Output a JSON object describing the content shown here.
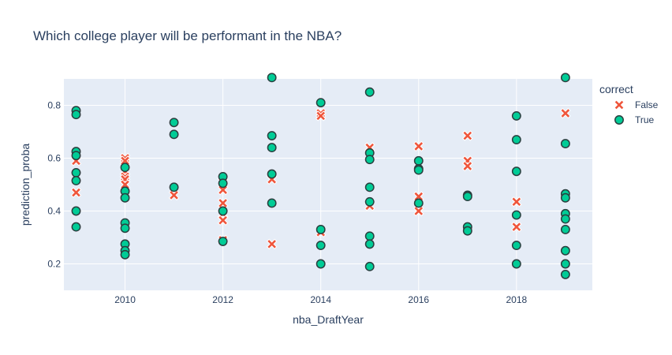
{
  "chart_data": {
    "type": "scatter",
    "title": "Which college player will be performant in the NBA?",
    "xlabel": "nba_DraftYear",
    "ylabel": "prediction_proba",
    "xlim": [
      2008.75,
      2019.55
    ],
    "ylim": [
      0.1,
      0.9
    ],
    "xticks": [
      2010,
      2012,
      2014,
      2016,
      2018
    ],
    "yticks": [
      0.2,
      0.4,
      0.6,
      0.8
    ],
    "xtick_labels": [
      "2010",
      "2012",
      "2014",
      "2016",
      "2018"
    ],
    "ytick_labels": [
      "0.2",
      "0.4",
      "0.6",
      "0.8"
    ],
    "grid": true,
    "legend": {
      "title": "correct",
      "placement": "right"
    },
    "series": [
      {
        "name": "False",
        "marker": "x",
        "color": "#EF553B",
        "points": [
          [
            2009,
            0.59
          ],
          [
            2009,
            0.47
          ],
          [
            2010,
            0.6
          ],
          [
            2010,
            0.59
          ],
          [
            2010,
            0.55
          ],
          [
            2010,
            0.53
          ],
          [
            2010,
            0.52
          ],
          [
            2010,
            0.5
          ],
          [
            2011,
            0.46
          ],
          [
            2012,
            0.51
          ],
          [
            2012,
            0.48
          ],
          [
            2012,
            0.43
          ],
          [
            2012,
            0.39
          ],
          [
            2012,
            0.365
          ],
          [
            2012,
            0.29
          ],
          [
            2013,
            0.52
          ],
          [
            2013,
            0.275
          ],
          [
            2014,
            0.77
          ],
          [
            2014,
            0.76
          ],
          [
            2014,
            0.32
          ],
          [
            2015,
            0.64
          ],
          [
            2015,
            0.42
          ],
          [
            2016,
            0.645
          ],
          [
            2016,
            0.455
          ],
          [
            2016,
            0.4
          ],
          [
            2017,
            0.685
          ],
          [
            2017,
            0.59
          ],
          [
            2017,
            0.57
          ],
          [
            2018,
            0.435
          ],
          [
            2018,
            0.34
          ],
          [
            2019,
            0.77
          ]
        ]
      },
      {
        "name": "True",
        "marker": "circle",
        "color": "#00CC96",
        "points": [
          [
            2009,
            0.78
          ],
          [
            2009,
            0.765
          ],
          [
            2009,
            0.625
          ],
          [
            2009,
            0.61
          ],
          [
            2009,
            0.545
          ],
          [
            2009,
            0.515
          ],
          [
            2009,
            0.4
          ],
          [
            2009,
            0.34
          ],
          [
            2010,
            0.565
          ],
          [
            2010,
            0.475
          ],
          [
            2010,
            0.45
          ],
          [
            2010,
            0.355
          ],
          [
            2010,
            0.335
          ],
          [
            2010,
            0.275
          ],
          [
            2010,
            0.25
          ],
          [
            2010,
            0.235
          ],
          [
            2011,
            0.735
          ],
          [
            2011,
            0.69
          ],
          [
            2011,
            0.49
          ],
          [
            2012,
            0.53
          ],
          [
            2012,
            0.505
          ],
          [
            2012,
            0.4
          ],
          [
            2012,
            0.285
          ],
          [
            2013,
            0.905
          ],
          [
            2013,
            0.685
          ],
          [
            2013,
            0.64
          ],
          [
            2013,
            0.54
          ],
          [
            2013,
            0.43
          ],
          [
            2014,
            0.81
          ],
          [
            2014,
            0.33
          ],
          [
            2014,
            0.27
          ],
          [
            2014,
            0.2
          ],
          [
            2015,
            0.85
          ],
          [
            2015,
            0.62
          ],
          [
            2015,
            0.595
          ],
          [
            2015,
            0.49
          ],
          [
            2015,
            0.435
          ],
          [
            2015,
            0.305
          ],
          [
            2015,
            0.275
          ],
          [
            2015,
            0.19
          ],
          [
            2016,
            0.59
          ],
          [
            2016,
            0.56
          ],
          [
            2016,
            0.555
          ],
          [
            2016,
            0.43
          ],
          [
            2017,
            0.46
          ],
          [
            2017,
            0.455
          ],
          [
            2017,
            0.34
          ],
          [
            2017,
            0.325
          ],
          [
            2018,
            0.76
          ],
          [
            2018,
            0.67
          ],
          [
            2018,
            0.55
          ],
          [
            2018,
            0.385
          ],
          [
            2018,
            0.27
          ],
          [
            2018,
            0.2
          ],
          [
            2019,
            0.905
          ],
          [
            2019,
            0.655
          ],
          [
            2019,
            0.465
          ],
          [
            2019,
            0.45
          ],
          [
            2019,
            0.39
          ],
          [
            2019,
            0.37
          ],
          [
            2019,
            0.33
          ],
          [
            2019,
            0.25
          ],
          [
            2019,
            0.2
          ],
          [
            2019,
            0.16
          ]
        ]
      }
    ]
  }
}
